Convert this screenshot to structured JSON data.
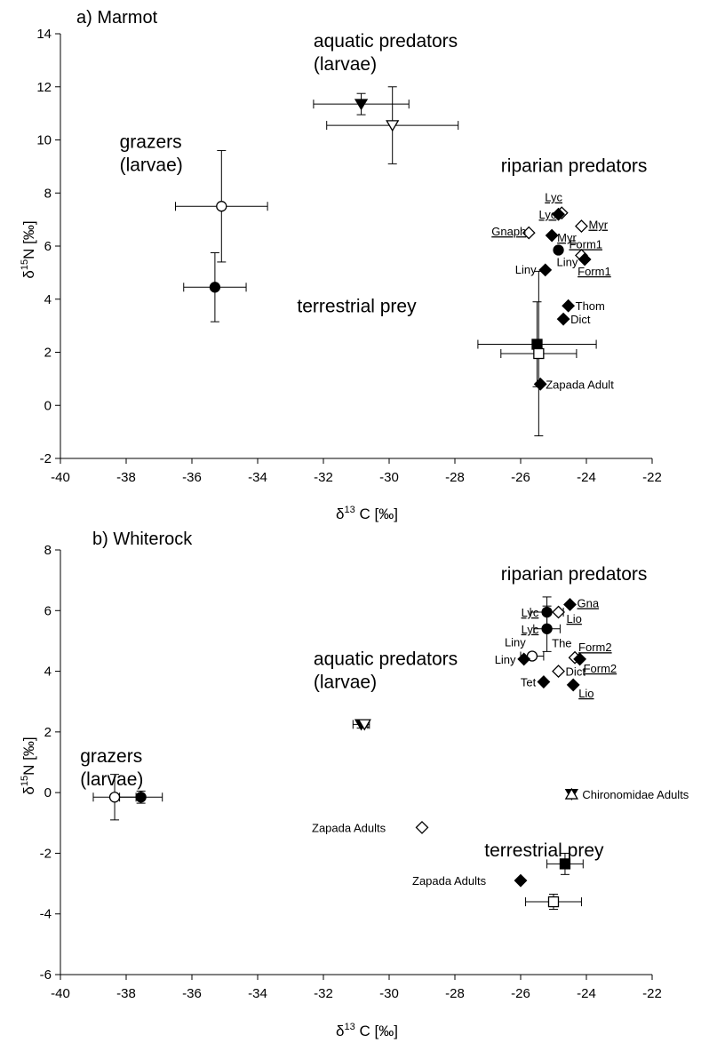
{
  "chart_data": [
    {
      "type": "scatter",
      "title": "a) Marmot",
      "xlim": [
        -40,
        -22
      ],
      "ylim": [
        -2,
        14
      ],
      "xticks": [
        -40,
        -38,
        -36,
        -34,
        -32,
        -30,
        -28,
        -26,
        -24,
        -22
      ],
      "yticks": [
        -2,
        0,
        2,
        4,
        6,
        8,
        10,
        12,
        14
      ],
      "xtick_labels": [
        "-40",
        "-38",
        "-36",
        "-34",
        "-32",
        "-30",
        "-28",
        "-26",
        "-24",
        "-22"
      ],
      "ytick_labels": [
        "-2",
        "0",
        "2",
        "4",
        "6",
        "8",
        "10",
        "12",
        "14"
      ],
      "xlabel": {
        "prefix": "δ",
        "sup": "13",
        "main": " C [‰]"
      },
      "ylabel": {
        "prefix": "δ",
        "sup": "15",
        "main": "N [‰]"
      },
      "grid": false,
      "group_labels": [
        {
          "lines": [
            "aquatic predators",
            "(larvae)"
          ],
          "x": -32.3,
          "y": 13.5
        },
        {
          "lines": [
            "grazers",
            "(larvae)"
          ],
          "x": -38.2,
          "y": 9.7
        },
        {
          "lines": [
            "riparian predators"
          ],
          "x": -26.6,
          "y": 8.8
        },
        {
          "lines": [
            "terrestrial prey"
          ],
          "x": -32.8,
          "y": 3.5
        }
      ],
      "points": [
        {
          "x": -35.1,
          "y": 7.5,
          "marker": "circle",
          "filled": false,
          "xerr": 1.4,
          "yerr": 2.1
        },
        {
          "x": -35.3,
          "y": 4.45,
          "marker": "circle",
          "filled": true,
          "xerr": 0.95,
          "yerr": 1.3
        },
        {
          "x": -30.85,
          "y": 11.35,
          "marker": "triangle-down",
          "filled": true,
          "xerr": 1.45,
          "yerr": 0.4
        },
        {
          "x": -29.9,
          "y": 10.55,
          "marker": "triangle-down",
          "filled": false,
          "xerr": 2.0,
          "yerr": 1.45
        },
        {
          "x": -25.5,
          "y": 2.3,
          "marker": "square",
          "filled": true,
          "xerr": 1.8,
          "yerr": 1.6
        },
        {
          "x": -25.45,
          "y": 1.95,
          "marker": "square",
          "filled": false,
          "xerr": 1.15,
          "yerr": 3.1
        },
        {
          "x": -25.4,
          "y": 0.8,
          "marker": "diamond",
          "filled": true,
          "label": "Zapada Adult",
          "lx": 6,
          "ly": 5,
          "underline": false
        },
        {
          "x": -24.75,
          "y": 7.25,
          "marker": "diamond",
          "filled": false,
          "label": "Lyc",
          "lx": -19,
          "ly": -13,
          "underline": true
        },
        {
          "x": -24.85,
          "y": 7.2,
          "marker": "diamond",
          "filled": true,
          "label": "Lyc",
          "lx": -22,
          "ly": 5,
          "underline": true
        },
        {
          "x": -24.15,
          "y": 6.75,
          "marker": "diamond",
          "filled": false,
          "label": "Myr",
          "lx": 8,
          "ly": 3,
          "underline": true
        },
        {
          "x": -25.75,
          "y": 6.5,
          "marker": "diamond",
          "filled": false,
          "label": "Gnaph",
          "lx": -42,
          "ly": 3,
          "underline": true
        },
        {
          "x": -25.05,
          "y": 6.4,
          "marker": "diamond",
          "filled": true,
          "label": "Myr",
          "lx": 6,
          "ly": 7,
          "underline": true
        },
        {
          "x": -24.85,
          "y": 5.85,
          "marker": "circle",
          "filled": true,
          "label": "Liny",
          "lx": -2,
          "ly": 18,
          "underline": false
        },
        {
          "x": -24.15,
          "y": 5.65,
          "marker": "diamond",
          "filled": false,
          "label": "Form1",
          "lx": -14,
          "ly": -8,
          "underline": true
        },
        {
          "x": -24.05,
          "y": 5.5,
          "marker": "diamond",
          "filled": true,
          "label": "Form1",
          "lx": -8,
          "ly": 18,
          "underline": true
        },
        {
          "x": -25.25,
          "y": 5.1,
          "marker": "diamond",
          "filled": true,
          "label": "Liny",
          "lx": -34,
          "ly": 4,
          "underline": false
        },
        {
          "x": -24.55,
          "y": 3.75,
          "marker": "diamond",
          "filled": true,
          "label": "Thom",
          "lx": 8,
          "ly": 5,
          "underline": false
        },
        {
          "x": -24.7,
          "y": 3.25,
          "marker": "diamond",
          "filled": true,
          "label": "Dict",
          "lx": 8,
          "ly": 5,
          "underline": false
        }
      ]
    },
    {
      "type": "scatter",
      "title": "b) Whiterock",
      "xlim": [
        -40,
        -22
      ],
      "ylim": [
        -6,
        8
      ],
      "xticks": [
        -40,
        -38,
        -36,
        -34,
        -32,
        -30,
        -28,
        -26,
        -24,
        -22
      ],
      "yticks": [
        -6,
        -4,
        -2,
        0,
        2,
        4,
        6,
        8
      ],
      "xtick_labels": [
        "-40",
        "-38",
        "-36",
        "-34",
        "-32",
        "-30",
        "-28",
        "-26",
        "-24",
        "-22"
      ],
      "ytick_labels": [
        "-6",
        "-4",
        "-2",
        "0",
        "2",
        "4",
        "6",
        "8"
      ],
      "xlabel": {
        "prefix": "δ",
        "sup": "13",
        "main": " C [‰]"
      },
      "ylabel": {
        "prefix": "δ",
        "sup": "15",
        "main": "N [‰]"
      },
      "grid": false,
      "group_labels": [
        {
          "lines": [
            "riparian predators"
          ],
          "x": -26.6,
          "y": 7.0
        },
        {
          "lines": [
            "aquatic predators",
            "(larvae)"
          ],
          "x": -32.3,
          "y": 4.2
        },
        {
          "lines": [
            "grazers",
            "(larvae)"
          ],
          "x": -39.4,
          "y": 1.0
        },
        {
          "lines": [
            "terrestrial prey"
          ],
          "x": -27.1,
          "y": -2.1
        }
      ],
      "points": [
        {
          "x": -38.35,
          "y": -0.15,
          "marker": "circle",
          "filled": false,
          "xerr": 0.65,
          "yerr": 0.75
        },
        {
          "x": -37.55,
          "y": -0.15,
          "marker": "circle",
          "filled": true,
          "xerr": 0.65,
          "yerr": 0.2
        },
        {
          "x": -30.85,
          "y": 2.25,
          "marker": "triangle-down",
          "filled": true,
          "xerr": 0.25,
          "yerr": 0.12
        },
        {
          "x": -30.75,
          "y": 2.25,
          "marker": "triangle-down",
          "filled": false,
          "xerr": 0.1,
          "yerr": 0.1
        },
        {
          "x": -29.0,
          "y": -1.15,
          "marker": "diamond",
          "filled": false,
          "label": "Zapada Adults",
          "lx": -124,
          "ly": 5,
          "underline": false
        },
        {
          "x": -26.0,
          "y": -2.9,
          "marker": "diamond",
          "filled": true,
          "label": "Zapada Adults",
          "lx": -122,
          "ly": 5,
          "underline": false
        },
        {
          "x": -24.45,
          "y": -0.05,
          "marker": "triangle-down",
          "filled": true
        },
        {
          "x": -24.45,
          "y": -0.05,
          "marker": "triangle-up",
          "filled": false,
          "label": "Chironomidae Adults",
          "lx": 12,
          "ly": 5,
          "underline": false
        },
        {
          "x": -24.65,
          "y": -2.35,
          "marker": "square",
          "filled": true,
          "xerr": 0.55,
          "yerr": 0.35
        },
        {
          "x": -25.0,
          "y": -3.6,
          "marker": "square",
          "filled": false,
          "xerr": 0.85,
          "yerr": 0.25
        },
        {
          "x": -25.2,
          "y": 5.95,
          "marker": "circle",
          "filled": true,
          "xerr": 0.5,
          "yerr": 0.5,
          "label": "Lyc",
          "lx": -29,
          "ly": 5,
          "underline": true
        },
        {
          "x": -24.85,
          "y": 5.95,
          "marker": "diamond",
          "filled": false,
          "label": "Lio",
          "lx": 9,
          "ly": 12,
          "underline": true
        },
        {
          "x": -24.5,
          "y": 6.2,
          "marker": "diamond",
          "filled": true,
          "label": "Gna",
          "lx": 8,
          "ly": 3,
          "underline": true
        },
        {
          "x": -25.2,
          "y": 5.4,
          "marker": "circle",
          "filled": true,
          "xerr": 0.4,
          "yerr": 0.75,
          "label": "Lyc",
          "lx": -29,
          "ly": 5,
          "underline": true
        },
        {
          "x": -24.35,
          "y": 4.45,
          "marker": "diamond",
          "filled": false,
          "label": "Form2",
          "lx": 4,
          "ly": -7,
          "underline": true
        },
        {
          "x": -24.2,
          "y": 4.4,
          "marker": "diamond",
          "filled": true,
          "label": "Form2",
          "lx": 4,
          "ly": 15,
          "underline": true
        },
        {
          "x": -25.65,
          "y": 4.5,
          "marker": "circle",
          "filled": false,
          "xerr": 0.35,
          "label": "Liny",
          "lx": -31,
          "ly": -11,
          "underline": false
        },
        {
          "x": -25.9,
          "y": 4.4,
          "marker": "diamond",
          "filled": true,
          "label": "Liny",
          "lx": -33,
          "ly": 5,
          "underline": false
        },
        {
          "x": -24.85,
          "y": 4.0,
          "marker": "diamond",
          "filled": false,
          "label": "Dict",
          "lx": 8,
          "ly": 5,
          "underline": false
        },
        {
          "x": -25.3,
          "y": 3.65,
          "marker": "diamond",
          "filled": true,
          "label": "Tet",
          "lx": -26,
          "ly": 5,
          "underline": false
        },
        {
          "x": -24.4,
          "y": 3.55,
          "marker": "diamond",
          "filled": true,
          "label": "Lio",
          "lx": 6,
          "ly": 14,
          "underline": true
        }
      ],
      "free_labels": [
        {
          "text": "The",
          "x": -25.05,
          "y": 4.8
        }
      ]
    }
  ]
}
